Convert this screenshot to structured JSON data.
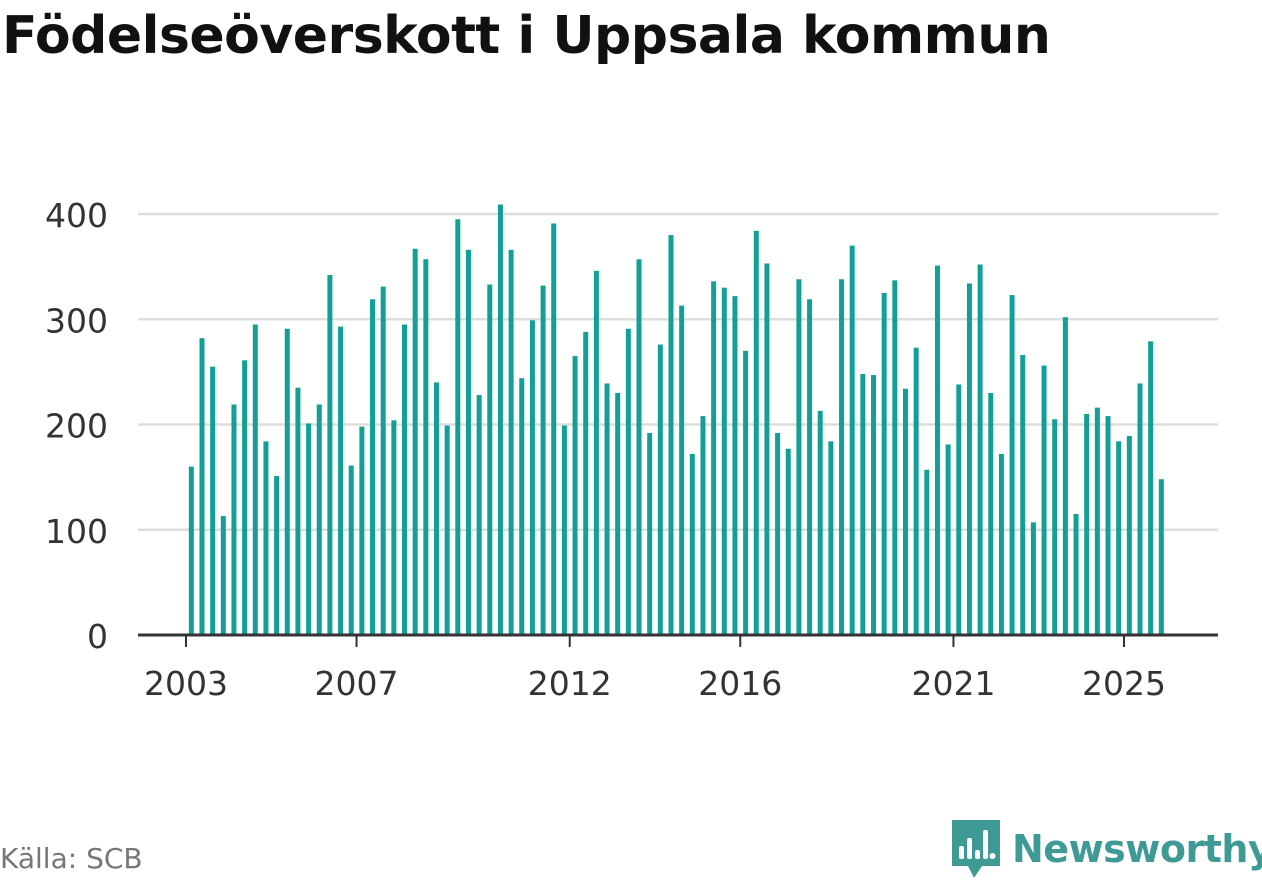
{
  "title": "Födelseöverskott i Uppsala kommun",
  "source": "Källa: SCB",
  "brand": {
    "name": "Newsworthy",
    "color": "#3d9a94",
    "icon": "bar-chart-speech-bubble-icon"
  },
  "colors": {
    "bar": "#13a094",
    "grid": "#dddddd",
    "axis": "#333333",
    "text": "#333333"
  },
  "chart_data": {
    "type": "bar",
    "grid": true,
    "ylim": [
      0,
      400
    ],
    "yticks": [
      0,
      100,
      200,
      300,
      400
    ],
    "xticks": [
      {
        "label": "2003",
        "x": 2003.0
      },
      {
        "label": "2007",
        "x": 2007.0
      },
      {
        "label": "2012",
        "x": 2012.0
      },
      {
        "label": "2016",
        "x": 2016.0
      },
      {
        "label": "2021",
        "x": 2021.0
      },
      {
        "label": "2025",
        "x": 2025.0
      }
    ],
    "series": [
      {
        "x": [
          2003.125,
          2003.375,
          2003.625,
          2003.875,
          2004.125,
          2004.375,
          2004.625,
          2004.875,
          2005.125,
          2005.375,
          2005.625,
          2005.875,
          2006.125,
          2006.375,
          2006.625,
          2006.875,
          2007.125,
          2007.375,
          2007.625,
          2007.875,
          2008.125,
          2008.375,
          2008.625,
          2008.875,
          2009.125,
          2009.375,
          2009.625,
          2009.875,
          2010.125,
          2010.375,
          2010.625,
          2010.875,
          2011.125,
          2011.375,
          2011.625,
          2011.875,
          2012.125,
          2012.375,
          2012.625,
          2012.875,
          2013.125,
          2013.375,
          2013.625,
          2013.875,
          2014.125,
          2014.375,
          2014.625,
          2014.875,
          2015.125,
          2015.375,
          2015.625,
          2015.875,
          2016.125,
          2016.375,
          2016.625,
          2016.875,
          2017.125,
          2017.375,
          2017.625,
          2017.875,
          2018.125,
          2018.375,
          2018.625,
          2018.875,
          2019.125,
          2019.375,
          2019.625,
          2019.875,
          2020.125,
          2020.375,
          2020.625,
          2020.875,
          2021.125,
          2021.375,
          2021.625,
          2021.875,
          2022.125,
          2022.375,
          2022.625,
          2022.875,
          2023.125,
          2023.375,
          2023.625,
          2023.875,
          2024.125,
          2024.375,
          2024.625,
          2024.875,
          2025.125,
          2025.375,
          2025.625,
          2025.875
        ],
        "values": [
          160,
          282,
          255,
          113,
          219,
          261,
          295,
          184,
          151,
          291,
          235,
          201,
          219,
          342,
          293,
          161,
          198,
          319,
          331,
          204,
          295,
          367,
          357,
          240,
          199,
          395,
          366,
          228,
          333,
          409,
          366,
          244,
          299,
          332,
          391,
          199,
          265,
          288,
          346,
          239,
          230,
          291,
          357,
          192,
          276,
          380,
          313,
          172,
          208,
          336,
          330,
          322,
          270,
          384,
          353,
          192,
          177,
          338,
          319,
          213,
          184,
          338,
          370,
          248,
          247,
          325,
          337,
          234,
          273,
          157,
          351,
          181,
          238,
          334,
          352,
          230,
          172,
          323,
          266,
          107,
          256,
          205,
          302,
          115,
          210,
          216,
          208,
          184,
          189,
          239,
          279,
          148
        ]
      }
    ]
  }
}
